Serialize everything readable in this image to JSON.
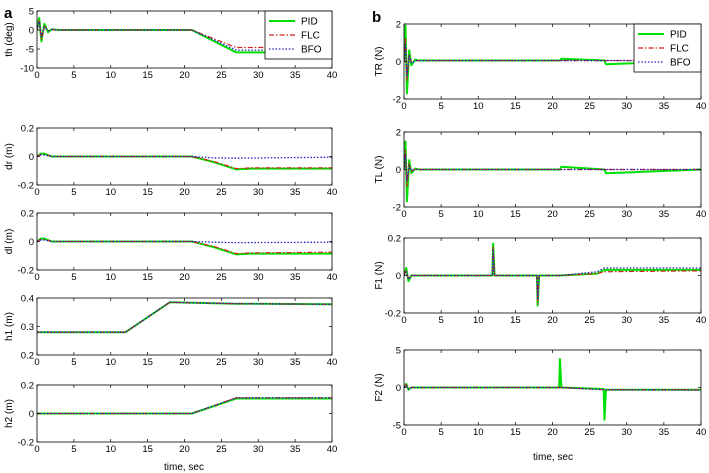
{
  "figure": {
    "panel_labels": [
      "a",
      "b"
    ],
    "xlabel": "time, sec"
  },
  "legend": [
    {
      "name": "PID",
      "color": "#00e000",
      "dash": "solid"
    },
    {
      "name": "FLC",
      "color": "#d42020",
      "dash": "dashdot"
    },
    {
      "name": "BFO",
      "color": "#1f1fc0",
      "dash": "dotted"
    }
  ],
  "chart_data": [
    {
      "type": "line",
      "id": "th",
      "column": "a",
      "ylabel": "th (deg)",
      "xlim": [
        0,
        40
      ],
      "ylim": [
        -10,
        5
      ],
      "xticks": [
        0,
        5,
        10,
        15,
        20,
        25,
        30,
        35,
        40
      ],
      "yticks": [
        -10,
        -5,
        0,
        5
      ],
      "legend_position": "top-right",
      "series": [
        {
          "name": "PID",
          "x": [
            0,
            0.3,
            0.6,
            1.0,
            1.5,
            2.0,
            3,
            21,
            27,
            40
          ],
          "y": [
            0,
            3.2,
            -3.0,
            1.6,
            -0.6,
            0.2,
            0,
            0,
            -5.9,
            -5.9
          ]
        },
        {
          "name": "FLC",
          "x": [
            0,
            0.3,
            0.6,
            1.0,
            1.5,
            2.0,
            3,
            21,
            27,
            40
          ],
          "y": [
            0,
            2.6,
            -2.4,
            1.0,
            -0.3,
            0.1,
            0,
            0,
            -4.6,
            -4.6
          ]
        },
        {
          "name": "BFO",
          "x": [
            0,
            0.3,
            0.6,
            1.0,
            1.5,
            2.0,
            3,
            21,
            27,
            40
          ],
          "y": [
            0,
            2.2,
            -1.8,
            0.8,
            -0.2,
            0.1,
            0,
            0,
            -5.3,
            -5.3
          ]
        }
      ]
    },
    {
      "type": "line",
      "id": "dr",
      "column": "a",
      "ylabel": "dr (m)",
      "xlim": [
        0,
        40
      ],
      "ylim": [
        -0.2,
        0.2
      ],
      "xticks": [
        0,
        5,
        10,
        15,
        20,
        25,
        30,
        35,
        40
      ],
      "yticks": [
        -0.2,
        0,
        0.2
      ],
      "series": [
        {
          "name": "PID",
          "x": [
            0,
            0.5,
            1,
            2,
            3,
            21,
            24,
            27,
            29,
            40
          ],
          "y": [
            0,
            0.02,
            0.02,
            0,
            0,
            0,
            -0.04,
            -0.09,
            -0.085,
            -0.085
          ]
        },
        {
          "name": "FLC",
          "x": [
            0,
            0.5,
            1,
            2,
            3,
            21,
            24,
            27,
            29,
            40
          ],
          "y": [
            0,
            0.015,
            0.015,
            0,
            0,
            0,
            -0.035,
            -0.085,
            -0.08,
            -0.08
          ]
        },
        {
          "name": "BFO",
          "x": [
            0,
            0.5,
            1,
            2,
            3,
            21,
            24,
            27,
            40
          ],
          "y": [
            0,
            0.01,
            0.01,
            0,
            0,
            0,
            -0.01,
            -0.012,
            -0.005
          ]
        }
      ]
    },
    {
      "type": "line",
      "id": "dl",
      "column": "a",
      "ylabel": "dl (m)",
      "xlim": [
        0,
        40
      ],
      "ylim": [
        -0.2,
        0.2
      ],
      "xticks": [
        0,
        5,
        10,
        15,
        20,
        25,
        30,
        35,
        40
      ],
      "yticks": [
        -0.2,
        0,
        0.2
      ],
      "series": [
        {
          "name": "PID",
          "x": [
            0,
            0.5,
            1,
            2,
            3,
            21,
            24,
            27,
            29,
            40
          ],
          "y": [
            0,
            0.02,
            0.02,
            0,
            0,
            0,
            -0.04,
            -0.09,
            -0.085,
            -0.085
          ]
        },
        {
          "name": "FLC",
          "x": [
            0,
            0.5,
            1,
            2,
            3,
            21,
            24,
            27,
            29,
            40
          ],
          "y": [
            0,
            0.015,
            0.015,
            0,
            0,
            0,
            -0.035,
            -0.085,
            -0.08,
            -0.075
          ]
        },
        {
          "name": "BFO",
          "x": [
            0,
            0.5,
            1,
            2,
            3,
            21,
            24,
            27,
            40
          ],
          "y": [
            0,
            0.01,
            0.01,
            0,
            0,
            0,
            -0.005,
            -0.008,
            -0.005
          ]
        }
      ]
    },
    {
      "type": "line",
      "id": "h1",
      "column": "a",
      "ylabel": "h1 (m)",
      "xlim": [
        0,
        40
      ],
      "ylim": [
        0.2,
        0.4
      ],
      "xticks": [
        0,
        5,
        10,
        15,
        20,
        25,
        30,
        35,
        40
      ],
      "yticks": [
        0.2,
        0.3,
        0.4
      ],
      "series": [
        {
          "name": "PID",
          "x": [
            0,
            12,
            18,
            27,
            40
          ],
          "y": [
            0.28,
            0.28,
            0.385,
            0.38,
            0.378
          ]
        },
        {
          "name": "FLC",
          "x": [
            0,
            12,
            18,
            27,
            40
          ],
          "y": [
            0.28,
            0.28,
            0.385,
            0.38,
            0.378
          ]
        },
        {
          "name": "BFO",
          "x": [
            0,
            12,
            18,
            27,
            40
          ],
          "y": [
            0.28,
            0.28,
            0.385,
            0.38,
            0.378
          ]
        }
      ]
    },
    {
      "type": "line",
      "id": "h2",
      "column": "a",
      "ylabel": "h2 (m)",
      "xlim": [
        0,
        40
      ],
      "ylim": [
        -0.2,
        0.2
      ],
      "xticks": [
        0,
        5,
        10,
        15,
        20,
        25,
        30,
        35,
        40
      ],
      "yticks": [
        -0.2,
        0,
        0.2
      ],
      "series": [
        {
          "name": "PID",
          "x": [
            0,
            21,
            27,
            40
          ],
          "y": [
            0,
            0,
            0.105,
            0.105
          ]
        },
        {
          "name": "FLC",
          "x": [
            0,
            21,
            27,
            40
          ],
          "y": [
            0,
            0,
            0.11,
            0.11
          ]
        },
        {
          "name": "BFO",
          "x": [
            0,
            21,
            27,
            40
          ],
          "y": [
            0,
            0,
            0.11,
            0.11
          ]
        }
      ]
    },
    {
      "type": "line",
      "id": "TR",
      "column": "b",
      "ylabel": "TR (N)",
      "xlim": [
        0,
        40
      ],
      "ylim": [
        -2,
        2
      ],
      "xticks": [
        0,
        5,
        10,
        15,
        20,
        25,
        30,
        35,
        40
      ],
      "yticks": [
        -2,
        0,
        2
      ],
      "legend_position": "top-right",
      "series": [
        {
          "name": "PID",
          "x": [
            0,
            0.2,
            0.4,
            0.7,
            1.0,
            1.5,
            2,
            21,
            21.2,
            27,
            27.2,
            40
          ],
          "y": [
            0,
            1.9,
            -1.7,
            0.6,
            -0.2,
            0.1,
            0.05,
            0.05,
            0.15,
            0.05,
            -0.15,
            0.05
          ]
        },
        {
          "name": "FLC",
          "x": [
            0,
            0.2,
            0.4,
            0.7,
            1.0,
            1.5,
            2,
            40
          ],
          "y": [
            0,
            1.2,
            -1.0,
            0.4,
            -0.1,
            0.05,
            0.05,
            0.05
          ]
        },
        {
          "name": "BFO",
          "x": [
            0,
            0.2,
            0.4,
            0.7,
            1.0,
            1.5,
            2,
            40
          ],
          "y": [
            0,
            0.9,
            -0.8,
            0.3,
            -0.1,
            0.05,
            0.05,
            0.05
          ]
        }
      ]
    },
    {
      "type": "line",
      "id": "TL",
      "column": "b",
      "ylabel": "TL (N)",
      "xlim": [
        0,
        40
      ],
      "ylim": [
        -2,
        2
      ],
      "xticks": [
        0,
        5,
        10,
        15,
        20,
        25,
        30,
        35,
        40
      ],
      "yticks": [
        -2,
        0,
        2
      ],
      "series": [
        {
          "name": "PID",
          "x": [
            0,
            0.2,
            0.4,
            0.7,
            1.0,
            1.5,
            2,
            21,
            21.2,
            27,
            27.2,
            40
          ],
          "y": [
            0,
            1.5,
            -1.7,
            0.5,
            -0.2,
            0.05,
            0,
            0,
            0.15,
            0,
            -0.2,
            0
          ]
        },
        {
          "name": "FLC",
          "x": [
            0,
            0.2,
            0.4,
            0.7,
            1.0,
            1.5,
            2,
            40
          ],
          "y": [
            0,
            1.0,
            -0.9,
            0.3,
            -0.1,
            0.05,
            0,
            0
          ]
        },
        {
          "name": "BFO",
          "x": [
            0,
            0.2,
            0.4,
            0.7,
            1.0,
            1.5,
            2,
            40
          ],
          "y": [
            0,
            0.8,
            -0.6,
            0.2,
            -0.05,
            0,
            0,
            0
          ]
        }
      ]
    },
    {
      "type": "line",
      "id": "F1",
      "column": "b",
      "ylabel": "F1 (N)",
      "xlim": [
        0,
        40
      ],
      "ylim": [
        -0.2,
        0.2
      ],
      "xticks": [
        0,
        5,
        10,
        15,
        20,
        25,
        30,
        35,
        40
      ],
      "yticks": [
        -0.2,
        0,
        0.2
      ],
      "series": [
        {
          "name": "PID",
          "x": [
            0,
            0.3,
            0.6,
            1,
            11.9,
            12,
            12.2,
            17.9,
            18,
            18.2,
            21,
            26,
            27,
            40
          ],
          "y": [
            0,
            0.04,
            -0.03,
            0,
            0,
            0.17,
            0,
            0,
            -0.16,
            0,
            0,
            0.01,
            0.03,
            0.03
          ]
        },
        {
          "name": "FLC",
          "x": [
            0,
            0.3,
            0.6,
            1,
            11.9,
            12,
            12.2,
            17.9,
            18,
            18.2,
            21,
            26,
            27,
            40
          ],
          "y": [
            0,
            0.03,
            -0.02,
            0,
            0,
            0.15,
            0,
            0,
            -0.15,
            0,
            0,
            0.01,
            0.02,
            0.025
          ]
        },
        {
          "name": "BFO",
          "x": [
            0,
            0.3,
            0.6,
            1,
            11.9,
            12,
            12.2,
            17.9,
            18,
            18.2,
            21,
            26,
            27,
            40
          ],
          "y": [
            0,
            0.02,
            -0.02,
            0,
            0,
            0.14,
            0,
            0,
            -0.13,
            0,
            0,
            0.02,
            0.04,
            0.04
          ]
        }
      ]
    },
    {
      "type": "line",
      "id": "F2",
      "column": "b",
      "ylabel": "F2 (N)",
      "xlim": [
        0,
        40
      ],
      "ylim": [
        -5,
        5
      ],
      "xticks": [
        0,
        5,
        10,
        15,
        20,
        25,
        30,
        35,
        40
      ],
      "yticks": [
        -5,
        0,
        5
      ],
      "series": [
        {
          "name": "PID",
          "x": [
            0,
            0.3,
            0.6,
            1,
            20.9,
            21,
            21.2,
            26.9,
            27,
            27.2,
            40
          ],
          "y": [
            0,
            0.5,
            -0.3,
            0,
            0,
            3.8,
            0,
            -0.2,
            -4.3,
            -0.3,
            -0.3
          ]
        },
        {
          "name": "FLC",
          "x": [
            0,
            0.3,
            0.6,
            1,
            21,
            27,
            40
          ],
          "y": [
            0,
            0.4,
            -0.2,
            0,
            0,
            -0.3,
            -0.3
          ]
        },
        {
          "name": "BFO",
          "x": [
            0,
            0.3,
            0.6,
            1,
            21,
            27,
            40
          ],
          "y": [
            0,
            0.3,
            -0.2,
            0,
            0,
            -0.3,
            -0.35
          ]
        }
      ]
    }
  ]
}
